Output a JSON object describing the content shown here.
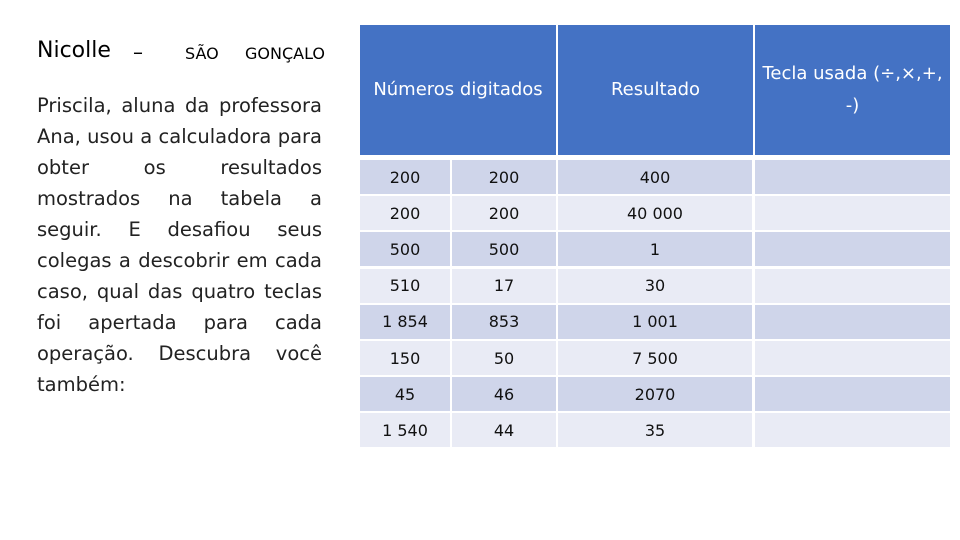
{
  "header": {
    "name": "Nicolle",
    "dash": "–",
    "city_1": "SÃO",
    "city_2": "GONÇALO"
  },
  "text": "Priscila, aluna da professora Ana, usou a calculadora para obter os resultados mostrados na tabela a seguir. E desafiou seus colegas a descobrir em cada caso, qual das quatro teclas foi apertada para cada operação. Descubra você também:",
  "table": {
    "columns": [
      "Números digitados",
      "Resultado",
      "Tecla usada (÷,×,+, -)"
    ],
    "rows": [
      [
        "200",
        "200",
        "400"
      ],
      [
        "200",
        "200",
        "40 000"
      ],
      [
        "500",
        "500",
        "1"
      ],
      [
        "510",
        "17",
        "30"
      ],
      [
        "1 854",
        "853",
        "1 001"
      ],
      [
        "150",
        "50",
        "7 500"
      ],
      [
        "45",
        "46",
        "2070"
      ],
      [
        "1 540",
        "44",
        "35"
      ]
    ]
  }
}
